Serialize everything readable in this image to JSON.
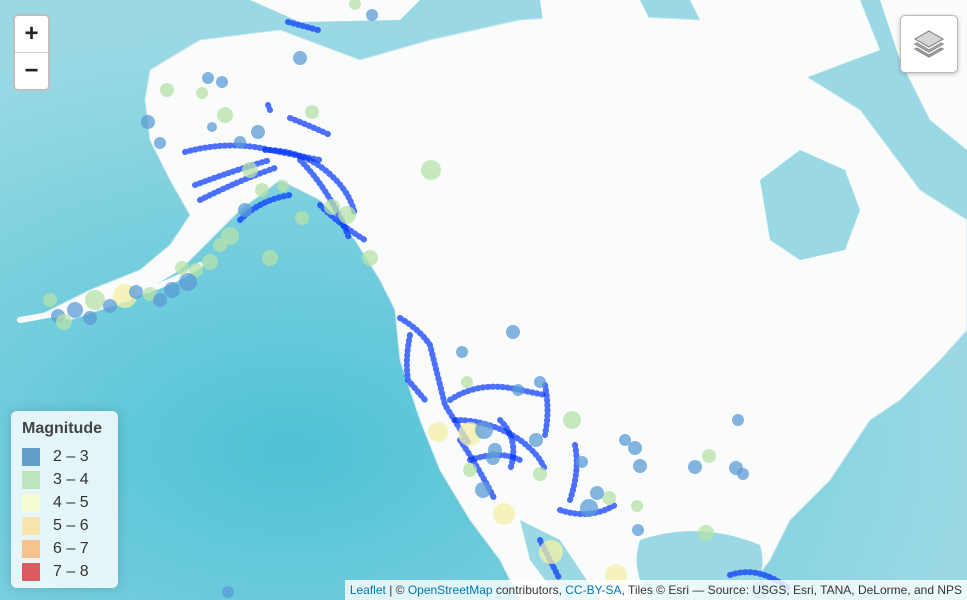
{
  "zoom": {
    "in_label": "+",
    "out_label": "−"
  },
  "layers_icon": "layers-icon",
  "legend": {
    "title": "Magnitude",
    "items": [
      {
        "label": "2 – 3",
        "color": "#2c7bb6"
      },
      {
        "label": "3 – 4",
        "color": "#abdda4"
      },
      {
        "label": "4 – 5",
        "color": "#ffffbf"
      },
      {
        "label": "5 – 6",
        "color": "#fee08b"
      },
      {
        "label": "6 – 7",
        "color": "#fdae61"
      },
      {
        "label": "7 – 8",
        "color": "#d7191c"
      }
    ]
  },
  "attribution": {
    "leaflet": "Leaflet",
    "sep": " | © ",
    "osm": "OpenStreetMap",
    "contributors": " contributors, ",
    "license": "CC-BY-SA",
    "tiles": ", Tiles © Esri — Source: USGS, Esri, TANA, DeLorme, and NPS"
  },
  "colors": {
    "ocean": "#8fd6e3",
    "deep_ocean": "#4fc2d6",
    "land": "#fafcfc",
    "track": "#0033ff",
    "quake_small": "#5b9bd5",
    "quake_mid": "#b5e2a8",
    "quake_large": "#f3f0a6"
  }
}
